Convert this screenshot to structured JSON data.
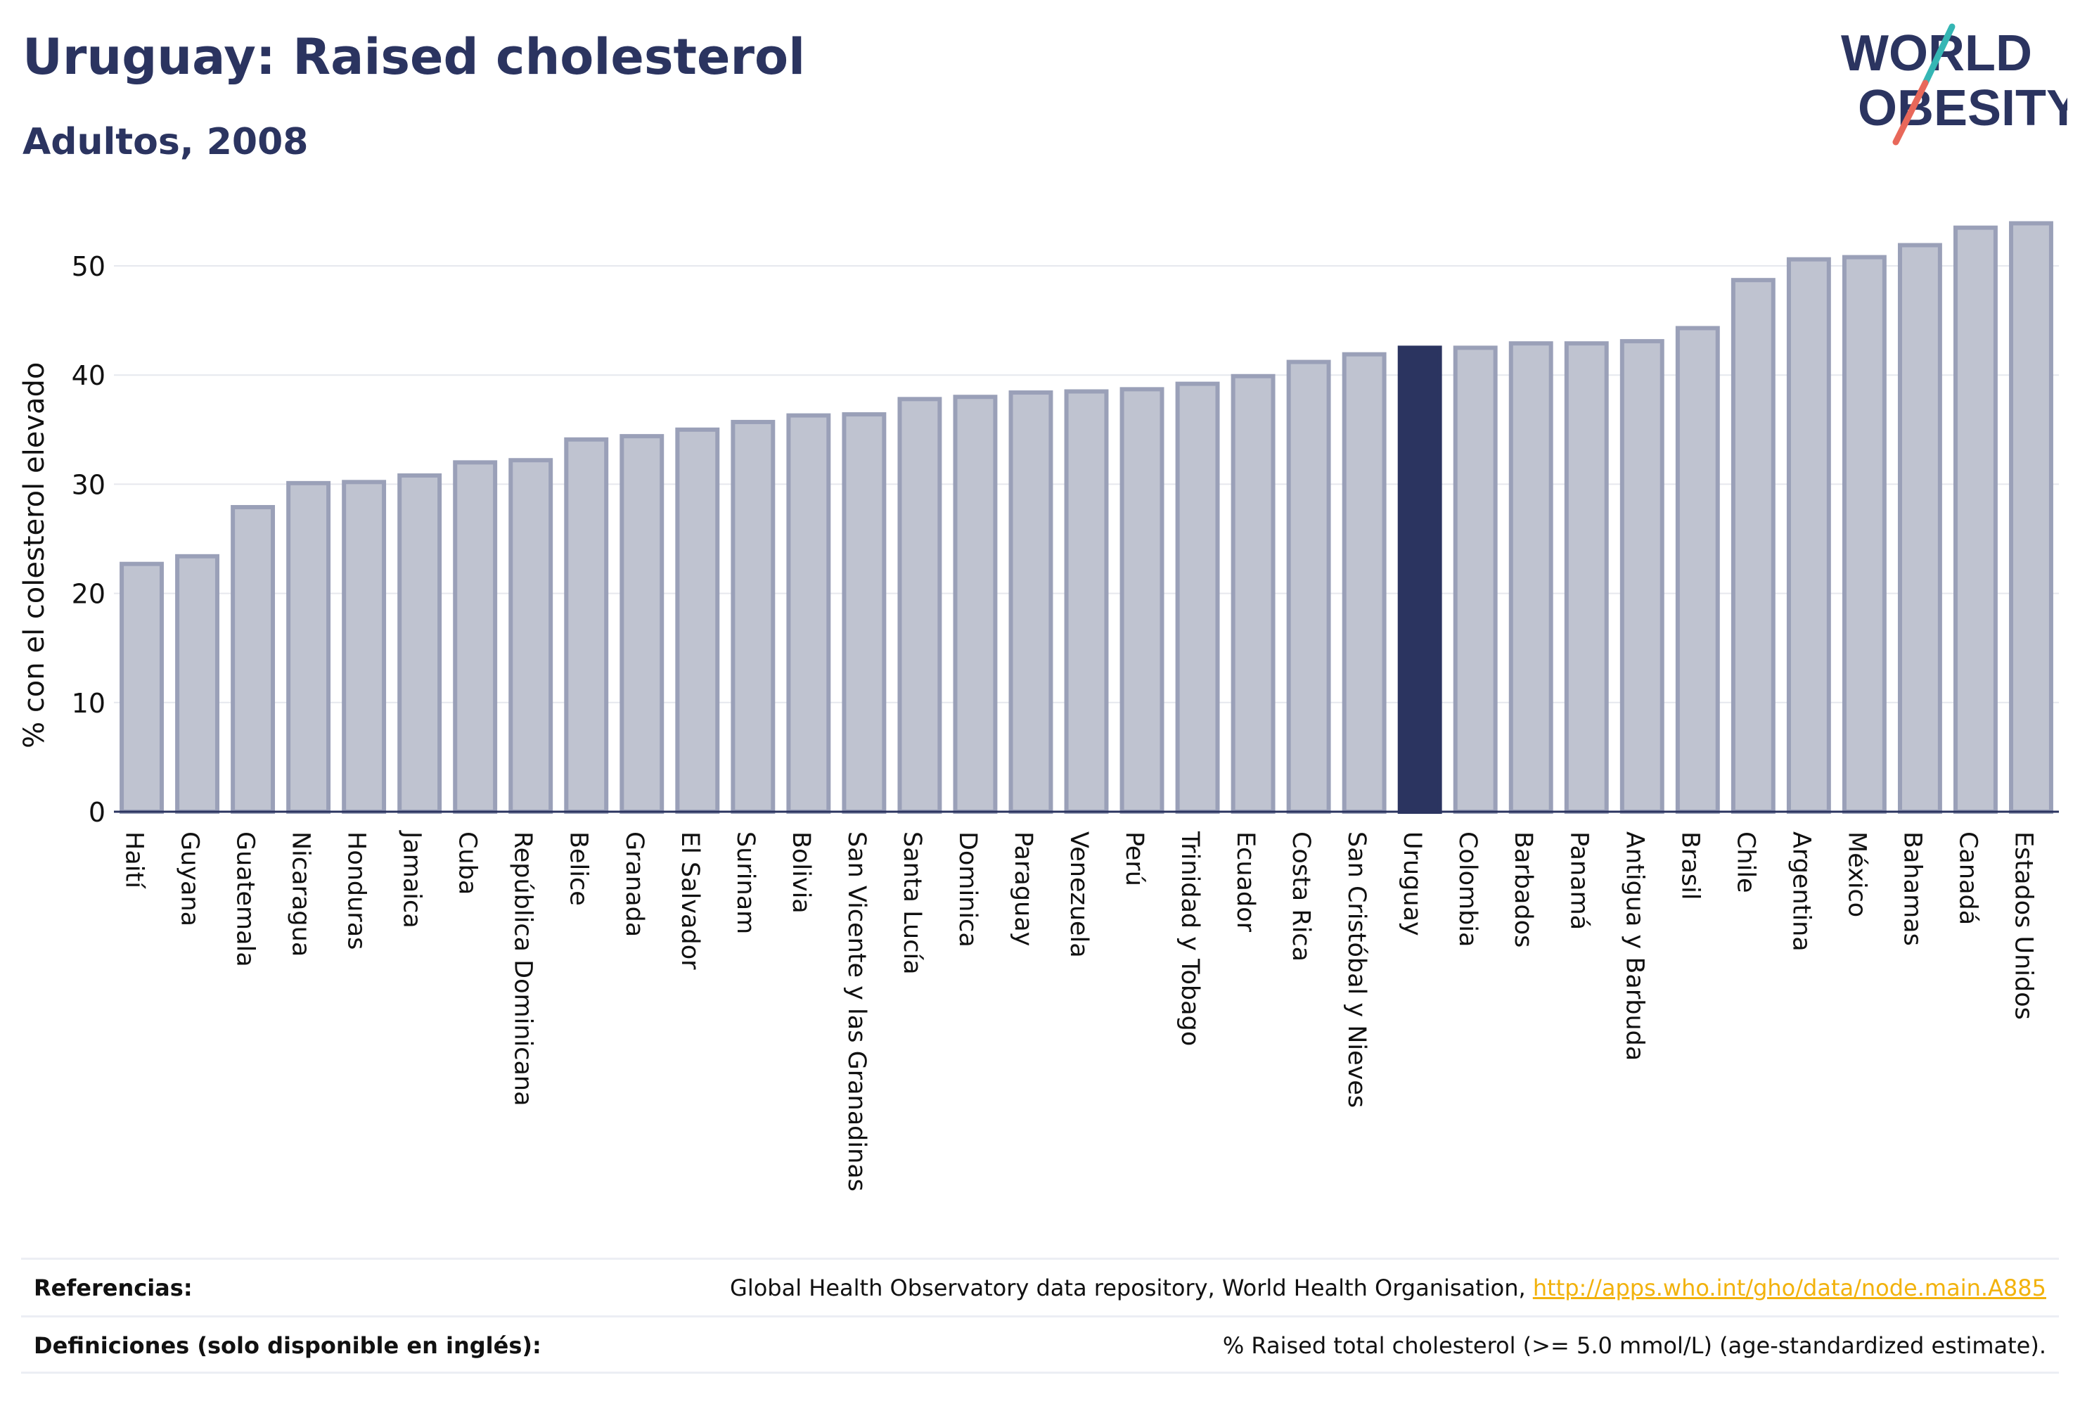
{
  "header": {
    "title": "Uruguay: Raised cholesterol",
    "subtitle": "Adultos, 2008"
  },
  "logo": {
    "line1": "WORLD",
    "line2": "OBESITY",
    "colors": {
      "text": "#2b3460",
      "slash_teal": "#35b6b4",
      "slash_red": "#e8685a"
    }
  },
  "chart_data": {
    "type": "bar",
    "title": "",
    "xlabel": "",
    "ylabel": "% con el colesterol elevado",
    "ylim": [
      0,
      55
    ],
    "yticks": [
      0,
      10,
      20,
      30,
      40,
      50
    ],
    "grid": true,
    "highlight": "Uruguay",
    "colors": {
      "bar": "#bfc3d0",
      "bar_border": "#9aa0b8",
      "highlight": "#2b3460"
    },
    "categories": [
      "Haití",
      "Guyana",
      "Guatemala",
      "Nicaragua",
      "Honduras",
      "Jamaica",
      "Cuba",
      "República Dominicana",
      "Belice",
      "Granada",
      "El Salvador",
      "Surinam",
      "Bolivia",
      "San Vicente y las Granadinas",
      "Santa Lucía",
      "Dominica",
      "Paraguay",
      "Venezuela",
      "Perú",
      "Trinidad y Tobago",
      "Ecuador",
      "Costa Rica",
      "San Cristóbal y Nieves",
      "Uruguay",
      "Colombia",
      "Barbados",
      "Panamá",
      "Antigua y Barbuda",
      "Brasil",
      "Chile",
      "Argentina",
      "México",
      "Bahamas",
      "Canadá",
      "Estados Unidos"
    ],
    "values": [
      22.7,
      23.4,
      27.9,
      30.1,
      30.2,
      30.8,
      32.0,
      32.2,
      34.1,
      34.4,
      35.0,
      35.7,
      36.3,
      36.4,
      37.8,
      38.0,
      38.4,
      38.5,
      38.7,
      39.2,
      39.9,
      41.2,
      41.9,
      42.5,
      42.5,
      42.9,
      42.9,
      43.1,
      44.3,
      48.7,
      50.6,
      50.8,
      51.9,
      53.5,
      53.9
    ]
  },
  "footer": {
    "references_label": "Referencias:",
    "references_text": "Global Health Observatory data repository, World Health Organisation,",
    "references_link": "http://apps.who.int/gho/data/node.main.A885",
    "definitions_label": "Definiciones (solo disponible en inglés):",
    "definitions_text": "% Raised total cholesterol (>= 5.0 mmol/L) (age-standardized estimate)."
  }
}
